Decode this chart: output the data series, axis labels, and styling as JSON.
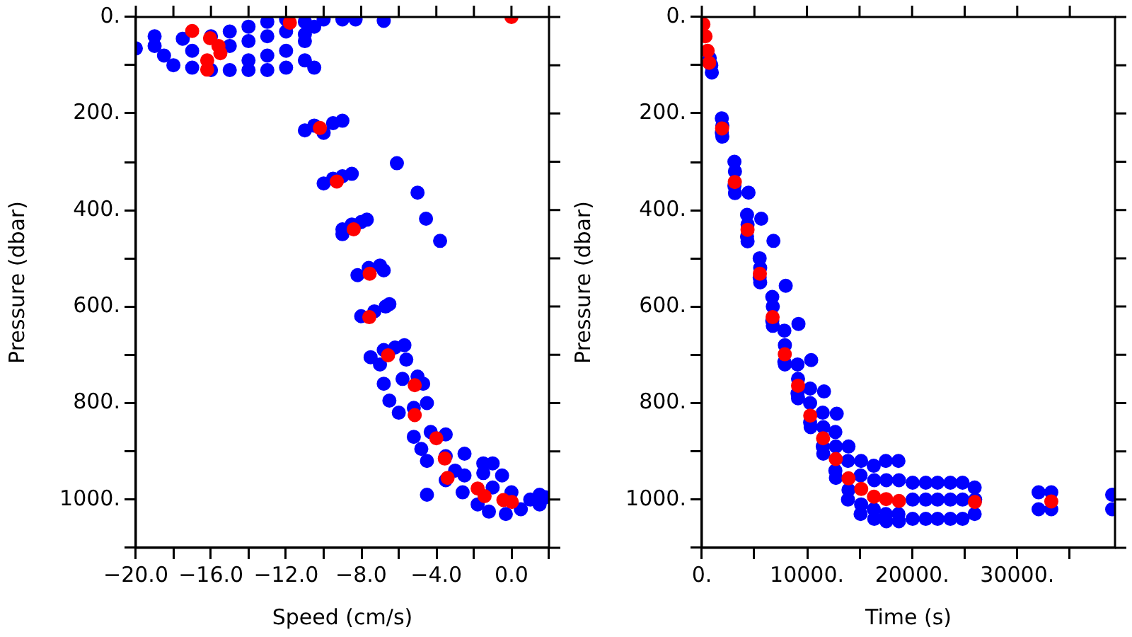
{
  "chart_data": [
    {
      "type": "scatter",
      "xlabel": "Speed (cm/s)",
      "ylabel": "Pressure (dbar)",
      "xlim": [
        -20,
        2
      ],
      "ylim": [
        1100,
        0
      ],
      "xticks": [
        {
          "value": -20,
          "label": "−20.0"
        },
        {
          "value": -18,
          "label": null
        },
        {
          "value": -16,
          "label": "−16.0"
        },
        {
          "value": -14,
          "label": null
        },
        {
          "value": -12,
          "label": "−12.0"
        },
        {
          "value": -10,
          "label": null
        },
        {
          "value": -8,
          "label": "−8.0"
        },
        {
          "value": -6,
          "label": null
        },
        {
          "value": -4,
          "label": "−4.0"
        },
        {
          "value": -2,
          "label": null
        },
        {
          "value": 0,
          "label": "0.0"
        },
        {
          "value": 2,
          "label": null
        }
      ],
      "yticks": [
        {
          "value": 0,
          "label": "0."
        },
        {
          "value": 100,
          "label": null
        },
        {
          "value": 200,
          "label": "200."
        },
        {
          "value": 300,
          "label": null
        },
        {
          "value": 400,
          "label": "400."
        },
        {
          "value": 500,
          "label": null
        },
        {
          "value": 600,
          "label": "600."
        },
        {
          "value": 700,
          "label": null
        },
        {
          "value": 800,
          "label": "800."
        },
        {
          "value": 900,
          "label": null
        },
        {
          "value": 1000,
          "label": "1000."
        },
        {
          "value": 1100,
          "label": null
        }
      ],
      "grid": false,
      "legend": false,
      "marker": "circle",
      "series": [
        {
          "color": "#0000ff",
          "x": [
            -20,
            -19,
            -19,
            -18.5,
            -18,
            -17.5,
            -17,
            -17,
            -16,
            -16,
            -15,
            -15,
            -15,
            -14,
            -14,
            -14,
            -14,
            -13,
            -13,
            -13,
            -13,
            -12,
            -12,
            -12,
            -12,
            -11,
            -11,
            -11,
            -10.5,
            -10,
            -9,
            -8.3,
            -10.5,
            -6.8,
            -11,
            -6.1,
            -5,
            -4.55,
            -3.8,
            -11,
            -10.5,
            -9.5,
            -9,
            -10,
            -10,
            -9.5,
            -9,
            -8.5,
            -9,
            -8.5,
            -8,
            -7.7,
            -9,
            -8.2,
            -7.6,
            -7,
            -6.8,
            -8,
            -7.3,
            -6.7,
            -6.5,
            -7.5,
            -6.8,
            -6.2,
            -5.7,
            -7,
            -5.6,
            -6.8,
            -5.8,
            -5,
            -4.7,
            -6,
            -5.2,
            -4.5,
            -6.5,
            -5.2,
            -4.3,
            -3.5,
            -4.8,
            -4.5,
            -3.5,
            -2.5,
            -1.5,
            -1,
            -3,
            -3.5,
            -2.5,
            -1.5,
            -0.5,
            -2.6,
            -4.5,
            -1.8,
            -1.2,
            -0.3,
            0.5,
            1,
            1.5,
            1.8,
            1.5,
            0,
            -1
          ],
          "values": [
            65,
            40,
            60,
            80,
            100,
            45,
            70,
            105,
            40,
            110,
            30,
            60,
            110,
            20,
            50,
            90,
            110,
            10,
            40,
            80,
            110,
            5,
            30,
            70,
            105,
            10,
            50,
            90,
            20,
            5,
            5,
            5,
            105,
            8,
            36,
            303,
            364,
            418,
            464,
            235,
            225,
            220,
            215,
            240,
            345,
            335,
            330,
            325,
            440,
            430,
            425,
            420,
            450,
            535,
            520,
            515,
            525,
            620,
            610,
            600,
            595,
            705,
            690,
            685,
            680,
            720,
            710,
            760,
            750,
            745,
            760,
            820,
            810,
            800,
            795,
            870,
            860,
            865,
            895,
            920,
            910,
            905,
            925,
            925,
            940,
            960,
            950,
            945,
            950,
            985,
            990,
            1010,
            1025,
            1030,
            1020,
            1000,
            990,
            995,
            1010,
            985,
            975
          ]
        },
        {
          "color": "#ff0000",
          "x": [
            -17,
            -16.05,
            -15.6,
            -15.5,
            -16.2,
            -16.2,
            -11.8,
            0,
            -10.2,
            -9.3,
            -8.4,
            -7.55,
            -7.57,
            -6.57,
            -5.15,
            -5.15,
            -4,
            -3.55,
            -3.4,
            -1.8,
            -1.43,
            -0.43,
            0.02
          ],
          "values": [
            29,
            44,
            60,
            75,
            90,
            109,
            12,
            0,
            230,
            341,
            440,
            532,
            622,
            701,
            763,
            825,
            873,
            915,
            955,
            977,
            993,
            1001,
            1005
          ]
        }
      ]
    },
    {
      "type": "scatter",
      "xlabel": "Time (s)",
      "ylabel": "Pressure (dbar)",
      "xlim": [
        0,
        39300
      ],
      "ylim": [
        1100,
        0
      ],
      "xticks": [
        {
          "value": 0,
          "label": "0."
        },
        {
          "value": 5000,
          "label": null
        },
        {
          "value": 10000,
          "label": "10000."
        },
        {
          "value": 15000,
          "label": null
        },
        {
          "value": 20000,
          "label": "20000."
        },
        {
          "value": 25000,
          "label": null
        },
        {
          "value": 30000,
          "label": "30000."
        },
        {
          "value": 35000,
          "label": null
        }
      ],
      "yticks": [
        {
          "value": 0,
          "label": "0."
        },
        {
          "value": 100,
          "label": null
        },
        {
          "value": 200,
          "label": "200."
        },
        {
          "value": 300,
          "label": null
        },
        {
          "value": 400,
          "label": "400."
        },
        {
          "value": 500,
          "label": null
        },
        {
          "value": 600,
          "label": "600."
        },
        {
          "value": 700,
          "label": null
        },
        {
          "value": 800,
          "label": "800."
        },
        {
          "value": 900,
          "label": null
        },
        {
          "value": 1000,
          "label": "1000."
        },
        {
          "value": 1100,
          "label": null
        }
      ],
      "grid": false,
      "legend": false,
      "marker": "circle",
      "series": [
        {
          "color": "#0000ff",
          "x": [
            750,
            900,
            950,
            1900,
            1950,
            1900,
            1950,
            3100,
            3150,
            3100,
            3150,
            4440,
            4300,
            4350,
            4300,
            4350,
            5650,
            5500,
            5550,
            5500,
            5550,
            6810,
            6700,
            6750,
            6700,
            6750,
            7980,
            7850,
            7900,
            7850,
            7900,
            9190,
            9100,
            9150,
            9100,
            9150,
            10400,
            10300,
            10300,
            10300,
            10350,
            11620,
            11500,
            11550,
            11500,
            11550,
            12830,
            12700,
            12750,
            12700,
            12750,
            13950,
            13900,
            13950,
            13900,
            15150,
            15100,
            15150,
            15100,
            16350,
            16400,
            16350,
            16400,
            17500,
            17550,
            17500,
            17550,
            18700,
            18750,
            18700,
            18750,
            20050,
            20050,
            20050,
            21300,
            21300,
            21300,
            22420,
            22420,
            22420,
            23640,
            23640,
            23640,
            24800,
            24800,
            24800,
            25950,
            26000,
            25950,
            32030,
            32030,
            33240,
            33240,
            39030,
            39030
          ],
          "values": [
            85,
            100,
            115,
            210,
            225,
            240,
            248,
            300,
            320,
            350,
            365,
            364,
            410,
            430,
            455,
            465,
            418,
            500,
            520,
            540,
            550,
            464,
            580,
            600,
            630,
            640,
            557,
            650,
            680,
            715,
            720,
            636,
            720,
            750,
            780,
            790,
            711,
            770,
            800,
            840,
            850,
            776,
            820,
            850,
            890,
            905,
            822,
            860,
            890,
            940,
            955,
            890,
            920,
            980,
            1000,
            920,
            950,
            1010,
            1030,
            930,
            960,
            1020,
            1040,
            920,
            960,
            1030,
            1045,
            920,
            960,
            1030,
            1045,
            965,
            1000,
            1040,
            965,
            1000,
            1040,
            965,
            1000,
            1040,
            965,
            1000,
            1040,
            965,
            1000,
            1040,
            975,
            1000,
            1030,
            985,
            1020,
            985,
            1020,
            990,
            1020
          ]
        },
        {
          "color": "#ff0000",
          "x": [
            150,
            350,
            550,
            700,
            1925,
            3136,
            4346,
            5518,
            6730,
            7890,
            9152,
            10310,
            11530,
            12740,
            13950,
            15160,
            16370,
            17530,
            18750,
            25970,
            33240
          ],
          "values": [
            15,
            40,
            70,
            95,
            231,
            342,
            441,
            532,
            622,
            699,
            764,
            826,
            873,
            916,
            956,
            978,
            994,
            999,
            1003,
            1005,
            1004
          ]
        }
      ]
    }
  ]
}
